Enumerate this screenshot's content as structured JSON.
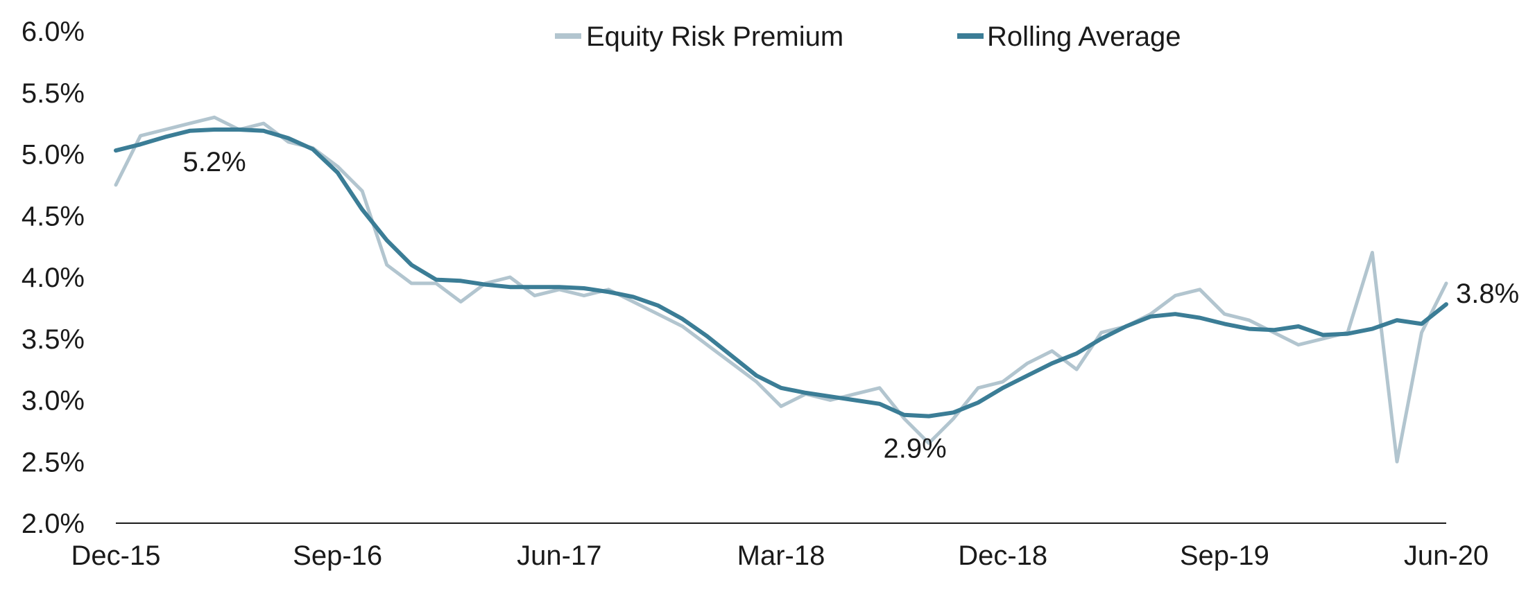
{
  "chart_data": {
    "type": "line",
    "title": "",
    "xlabel": "",
    "ylabel": "",
    "x_ticks": [
      "Dec-15",
      "Sep-16",
      "Jun-17",
      "Mar-18",
      "Dec-18",
      "Sep-19",
      "Jun-20"
    ],
    "y_ticks": [
      "2.0%",
      "2.5%",
      "3.0%",
      "3.5%",
      "4.0%",
      "4.5%",
      "5.0%",
      "5.5%",
      "6.0%"
    ],
    "ylim": [
      2.0,
      6.0
    ],
    "xlim": [
      "2015-12",
      "2020-06"
    ],
    "grid": false,
    "legend_position": "top-center",
    "series": [
      {
        "name": "Equity Risk Premium",
        "color": "#b2c5cf",
        "x": [
          "2015-12",
          "2016-01",
          "2016-02",
          "2016-03",
          "2016-04",
          "2016-05",
          "2016-06",
          "2016-07",
          "2016-08",
          "2016-09",
          "2016-10",
          "2016-11",
          "2016-12",
          "2017-01",
          "2017-02",
          "2017-03",
          "2017-04",
          "2017-05",
          "2017-06",
          "2017-07",
          "2017-08",
          "2017-09",
          "2017-10",
          "2017-11",
          "2017-12",
          "2018-01",
          "2018-02",
          "2018-03",
          "2018-04",
          "2018-05",
          "2018-06",
          "2018-07",
          "2018-08",
          "2018-09",
          "2018-10",
          "2018-11",
          "2018-12",
          "2019-01",
          "2019-02",
          "2019-03",
          "2019-04",
          "2019-05",
          "2019-06",
          "2019-07",
          "2019-08",
          "2019-09",
          "2019-10",
          "2019-11",
          "2019-12",
          "2020-01",
          "2020-02",
          "2020-03",
          "2020-04",
          "2020-05",
          "2020-06"
        ],
        "values": [
          4.75,
          5.15,
          5.2,
          5.25,
          5.3,
          5.2,
          5.25,
          5.1,
          5.05,
          4.9,
          4.7,
          4.1,
          3.95,
          3.95,
          3.8,
          3.95,
          4.0,
          3.85,
          3.9,
          3.85,
          3.9,
          3.8,
          3.7,
          3.6,
          3.45,
          3.3,
          3.15,
          2.95,
          3.05,
          3.0,
          3.05,
          3.1,
          2.85,
          2.65,
          2.85,
          3.1,
          3.15,
          3.3,
          3.4,
          3.25,
          3.55,
          3.6,
          3.7,
          3.85,
          3.9,
          3.7,
          3.65,
          3.55,
          3.45,
          3.5,
          3.55,
          4.2,
          2.5,
          3.55,
          3.95
        ]
      },
      {
        "name": "Rolling Average",
        "color": "#3b7d96",
        "x": [
          "2015-12",
          "2016-01",
          "2016-02",
          "2016-03",
          "2016-04",
          "2016-05",
          "2016-06",
          "2016-07",
          "2016-08",
          "2016-09",
          "2016-10",
          "2016-11",
          "2016-12",
          "2017-01",
          "2017-02",
          "2017-03",
          "2017-04",
          "2017-05",
          "2017-06",
          "2017-07",
          "2017-08",
          "2017-09",
          "2017-10",
          "2017-11",
          "2017-12",
          "2018-01",
          "2018-02",
          "2018-03",
          "2018-04",
          "2018-05",
          "2018-06",
          "2018-07",
          "2018-08",
          "2018-09",
          "2018-10",
          "2018-11",
          "2018-12",
          "2019-01",
          "2019-02",
          "2019-03",
          "2019-04",
          "2019-05",
          "2019-06",
          "2019-07",
          "2019-08",
          "2019-09",
          "2019-10",
          "2019-11",
          "2019-12",
          "2020-01",
          "2020-02",
          "2020-03",
          "2020-04",
          "2020-05",
          "2020-06"
        ],
        "values": [
          5.03,
          5.08,
          5.14,
          5.19,
          5.2,
          5.2,
          5.19,
          5.13,
          5.04,
          4.85,
          4.55,
          4.3,
          4.1,
          3.98,
          3.97,
          3.94,
          3.92,
          3.92,
          3.92,
          3.91,
          3.88,
          3.84,
          3.77,
          3.66,
          3.52,
          3.36,
          3.2,
          3.1,
          3.06,
          3.03,
          3.0,
          2.97,
          2.88,
          2.87,
          2.9,
          2.98,
          3.1,
          3.2,
          3.3,
          3.38,
          3.5,
          3.6,
          3.68,
          3.7,
          3.67,
          3.62,
          3.58,
          3.57,
          3.6,
          3.53,
          3.54,
          3.58,
          3.65,
          3.62,
          3.78
        ]
      }
    ],
    "annotations": [
      {
        "text": "5.2%",
        "x": "2016-04",
        "y": 5.2
      },
      {
        "text": "2.9%",
        "x": "2018-09",
        "y": 2.87
      },
      {
        "text": "3.8%",
        "x": "2020-06",
        "y": 3.78
      }
    ]
  }
}
